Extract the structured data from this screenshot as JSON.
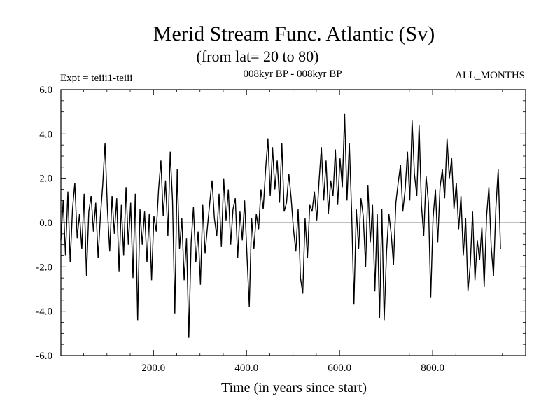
{
  "chart_data": {
    "type": "line",
    "title": "Merid Stream Func. Atlantic (Sv)",
    "subtitle": "(from lat= 20 to 80)",
    "experiment_label": "Expt = teiii1-teiii",
    "period_label": "008kyr BP - 008kyr BP",
    "months_label": "ALL_MONTHS",
    "xlabel": "Time (in years since start)",
    "ylabel": "",
    "xlim": [
      1,
      1000
    ],
    "ylim": [
      -6,
      6
    ],
    "x_ticks": [
      200,
      400,
      600,
      800
    ],
    "x_tick_labels": [
      "200.0",
      "400.0",
      "600.0",
      "800.0"
    ],
    "y_ticks": [
      -6,
      -4,
      -2,
      0,
      2,
      4,
      6
    ],
    "y_tick_labels": [
      "-6.0",
      "-4.0",
      "-2.0",
      "0.0",
      "2.0",
      "4.0",
      "6.0"
    ],
    "zero_line": true,
    "grid": false,
    "line_color": "#000000",
    "series": [
      {
        "x_start": 1,
        "x_step": 5,
        "values": [
          -0.8,
          1.0,
          -1.5,
          1.4,
          -1.8,
          0.6,
          1.8,
          -0.7,
          0.4,
          -1.2,
          1.3,
          -2.4,
          0.5,
          1.2,
          -0.4,
          0.9,
          -1.6,
          0.3,
          1.7,
          3.6,
          0.6,
          -1.3,
          1.2,
          -0.5,
          1.1,
          -2.2,
          0.8,
          -1.5,
          1.6,
          -1.0,
          0.9,
          -2.5,
          1.3,
          -4.4,
          0.6,
          -1.0,
          0.5,
          -1.8,
          0.4,
          -2.6,
          0.3,
          -0.4,
          1.5,
          2.8,
          0.3,
          1.9,
          -0.6,
          3.2,
          1.0,
          -4.1,
          2.4,
          -1.2,
          0.2,
          -2.6,
          -0.7,
          -5.2,
          -0.9,
          0.7,
          -1.8,
          -0.4,
          -2.8,
          0.8,
          -1.4,
          -0.2,
          0.9,
          1.9,
          0.2,
          -0.6,
          1.3,
          -1.1,
          2.0,
          0.1,
          1.5,
          -1.0,
          0.6,
          1.1,
          -1.6,
          0.5,
          -0.8,
          1.0,
          -1.5,
          -3.8,
          0.2,
          -1.2,
          0.4,
          -0.3,
          1.5,
          0.6,
          2.4,
          3.8,
          1.2,
          3.4,
          1.5,
          2.8,
          0.9,
          3.6,
          0.5,
          0.9,
          2.2,
          1.1,
          -0.3,
          -1.3,
          0.6,
          -2.5,
          -3.2,
          0.2,
          -1.6,
          0.8,
          0.5,
          1.4,
          0.1,
          1.9,
          3.4,
          1.0,
          2.8,
          0.4,
          1.9,
          1.2,
          3.3,
          0.8,
          2.9,
          1.6,
          4.9,
          1.0,
          3.6,
          0.5,
          -3.7,
          0.6,
          -1.2,
          1.1,
          0.3,
          -2.0,
          1.7,
          -0.9,
          0.8,
          -3.1,
          0.4,
          -4.3,
          0.6,
          -4.4,
          -1.3,
          0.4,
          -0.5,
          -1.9,
          0.9,
          1.8,
          2.6,
          0.5,
          1.5,
          3.2,
          1.0,
          4.6,
          2.2,
          1.2,
          4.4,
          0.8,
          -0.6,
          2.1,
          0.9,
          -3.4,
          0.2,
          1.5,
          -0.9,
          1.6,
          2.4,
          1.1,
          3.8,
          2.0,
          2.9,
          0.6,
          1.8,
          -0.3,
          1.2,
          -1.5,
          0.2,
          -3.1,
          -1.9,
          0.5,
          -2.6,
          -0.8,
          -1.7,
          -0.2,
          -2.9,
          0.3,
          1.6,
          -1.1,
          -2.4,
          0.7,
          2.4,
          -1.2
        ]
      }
    ]
  }
}
